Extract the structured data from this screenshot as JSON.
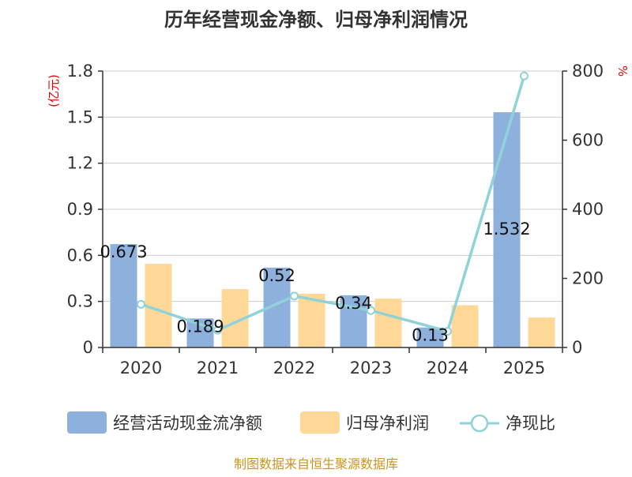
{
  "chart_data": {
    "type": "bar+line",
    "title": "历年经营现金净额、归母净利润情况",
    "categories": [
      "2020",
      "2021",
      "2022",
      "2023",
      "2024",
      "2025"
    ],
    "left_axis": {
      "label": "(亿元)",
      "range": [
        0,
        1.8
      ],
      "ticks": [
        "0",
        "0.3",
        "0.6",
        "0.9",
        "1.2",
        "1.5",
        "1.8"
      ]
    },
    "right_axis": {
      "label": "%",
      "range": [
        0,
        800
      ],
      "ticks": [
        "0",
        "200",
        "400",
        "600",
        "800"
      ]
    },
    "series": [
      {
        "name": "经营活动现金流净额",
        "type": "bar",
        "axis": "left",
        "color": "#8eb0dd",
        "values": [
          0.673,
          0.189,
          0.52,
          0.34,
          0.13,
          1.532
        ],
        "labels": [
          "0.673",
          "0.189",
          "0.52",
          "0.34",
          "0.13",
          "1.532"
        ]
      },
      {
        "name": "归母净利润",
        "type": "bar",
        "axis": "left",
        "color": "#ffd897",
        "values": [
          0.545,
          0.38,
          0.35,
          0.318,
          0.275,
          0.195
        ]
      },
      {
        "name": "净现比",
        "type": "line",
        "axis": "right",
        "color": "#8fd3d8",
        "values": [
          125,
          50,
          149,
          107,
          47,
          786
        ]
      }
    ]
  },
  "footer": {
    "source": "制图数据来自恒生聚源数据库"
  },
  "colors": {
    "axis": "#333333",
    "grid": "#cccccc",
    "unit_red": "#e60000",
    "source": "#c8961e"
  }
}
